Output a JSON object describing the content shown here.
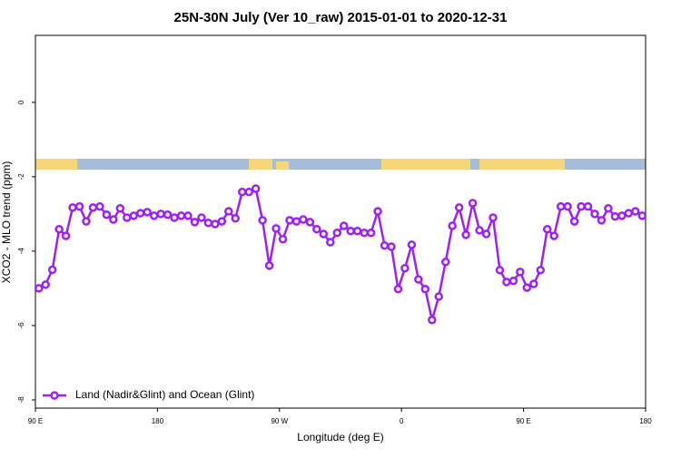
{
  "chart_data": {
    "type": "line",
    "title": "25N-30N July (Ver 10_raw)   2015-01-01 to 2020-12-31",
    "x_label": "Longitude (deg E)",
    "y_label": "XCO2 - MLO trend (ppm)",
    "xlim": [
      90,
      540
    ],
    "ylim": [
      -8.22,
      1.8
    ],
    "xticks": [
      {
        "value": 90,
        "label": "90 E"
      },
      {
        "value": 180,
        "label": "180"
      },
      {
        "value": 270,
        "label": "90 W"
      },
      {
        "value": 360,
        "label": "0"
      },
      {
        "value": 450,
        "label": "90 E"
      },
      {
        "value": 540,
        "label": "180"
      }
    ],
    "yticks": [
      0,
      -2,
      -4,
      -6,
      -8
    ],
    "legend": "bottomleft",
    "x": [
      92.5,
      97.5,
      102.5,
      107.5,
      112.5,
      117.5,
      122.5,
      127.5,
      132.5,
      137.5,
      142.5,
      147.5,
      152.5,
      157.5,
      162.5,
      167.5,
      172.5,
      177.5,
      182.5,
      187.5,
      192.5,
      197.5,
      202.5,
      207.5,
      212.5,
      217.5,
      222.5,
      227.5,
      232.5,
      237.5,
      242.5,
      247.5,
      252.5,
      257.5,
      262.5,
      267.5,
      272.5,
      277.5,
      282.5,
      287.5,
      292.5,
      297.5,
      302.5,
      307.5,
      312.5,
      317.5,
      322.5,
      327.5,
      332.5,
      337.5,
      342.5,
      347.5,
      352.5,
      357.5,
      362.5,
      367.5,
      372.5,
      377.5,
      382.5,
      387.5,
      392.5,
      397.5,
      402.5,
      407.5,
      412.5,
      417.5,
      422.5,
      427.5,
      432.5,
      437.5,
      442.5,
      447.5,
      452.5,
      457.5,
      462.5,
      467.5,
      472.5,
      477.5,
      482.5,
      487.5,
      492.5,
      497.5,
      502.5,
      507.5,
      512.5,
      517.5,
      522.5,
      527.5,
      532.5,
      537.5
    ],
    "series": [
      {
        "name": "Land (Nadir&Glint) and Ocean (Glint)",
        "color": "#a020f0",
        "values": [
          -5.0,
          -4.9,
          -4.5,
          -3.41,
          -3.59,
          -2.83,
          -2.8,
          -3.2,
          -2.83,
          -2.8,
          -3.02,
          -3.15,
          -2.85,
          -3.1,
          -3.05,
          -2.98,
          -2.95,
          -3.05,
          -3.0,
          -3.02,
          -3.1,
          -3.05,
          -3.05,
          -3.22,
          -3.1,
          -3.24,
          -3.27,
          -3.2,
          -2.93,
          -3.12,
          -2.41,
          -2.41,
          -2.32,
          -3.17,
          -4.39,
          -3.39,
          -3.68,
          -3.17,
          -3.2,
          -3.15,
          -3.22,
          -3.41,
          -3.54,
          -3.76,
          -3.51,
          -3.32,
          -3.46,
          -3.46,
          -3.51,
          -3.51,
          -2.93,
          -3.85,
          -3.88,
          -5.02,
          -4.46,
          -3.83,
          -4.76,
          -5.02,
          -5.85,
          -5.22,
          -4.29,
          -3.32,
          -2.83,
          -3.56,
          -2.71,
          -3.44,
          -3.54,
          -3.1,
          -4.51,
          -4.83,
          -4.8,
          -4.56,
          -4.98,
          -4.88,
          -4.51,
          -3.41,
          -3.59,
          -2.8,
          -2.8,
          -3.2,
          -2.8,
          -2.8,
          -3.0,
          -3.17,
          -2.85,
          -3.07,
          -3.05,
          -2.98,
          -2.93,
          -3.05
        ]
      }
    ]
  }
}
